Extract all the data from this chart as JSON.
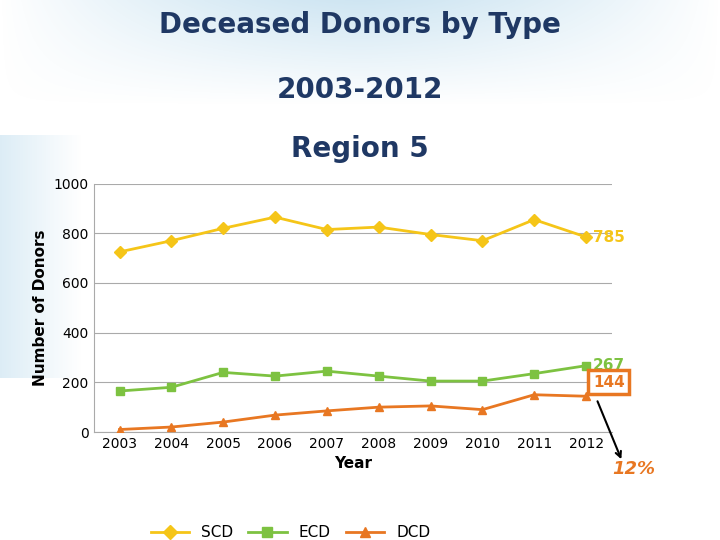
{
  "title_line1": "Deceased Donors by Type",
  "title_line2": "2003-2012",
  "title_line3": "Region 5",
  "xlabel": "Year",
  "ylabel": "Number of Donors",
  "years": [
    2003,
    2004,
    2005,
    2006,
    2007,
    2008,
    2009,
    2010,
    2011,
    2012
  ],
  "SCD": [
    725,
    770,
    820,
    865,
    815,
    825,
    795,
    770,
    855,
    785
  ],
  "ECD": [
    165,
    180,
    240,
    225,
    245,
    225,
    205,
    205,
    235,
    267
  ],
  "DCD": [
    10,
    20,
    40,
    68,
    85,
    100,
    105,
    90,
    150,
    144
  ],
  "SCD_color": "#F5C518",
  "ECD_color": "#7DC241",
  "DCD_color": "#E87722",
  "ylim": [
    0,
    1000
  ],
  "yticks": [
    0,
    200,
    400,
    600,
    800,
    1000
  ],
  "SCD_last_label": "785",
  "ECD_last_label": "267",
  "DCD_last_label": "144",
  "pct_label": "12%",
  "grid_color": "#AAAAAA",
  "title_color": "#1F3864",
  "title_fontsize": 20,
  "axis_label_fontsize": 11,
  "tick_fontsize": 10,
  "legend_fontsize": 11
}
